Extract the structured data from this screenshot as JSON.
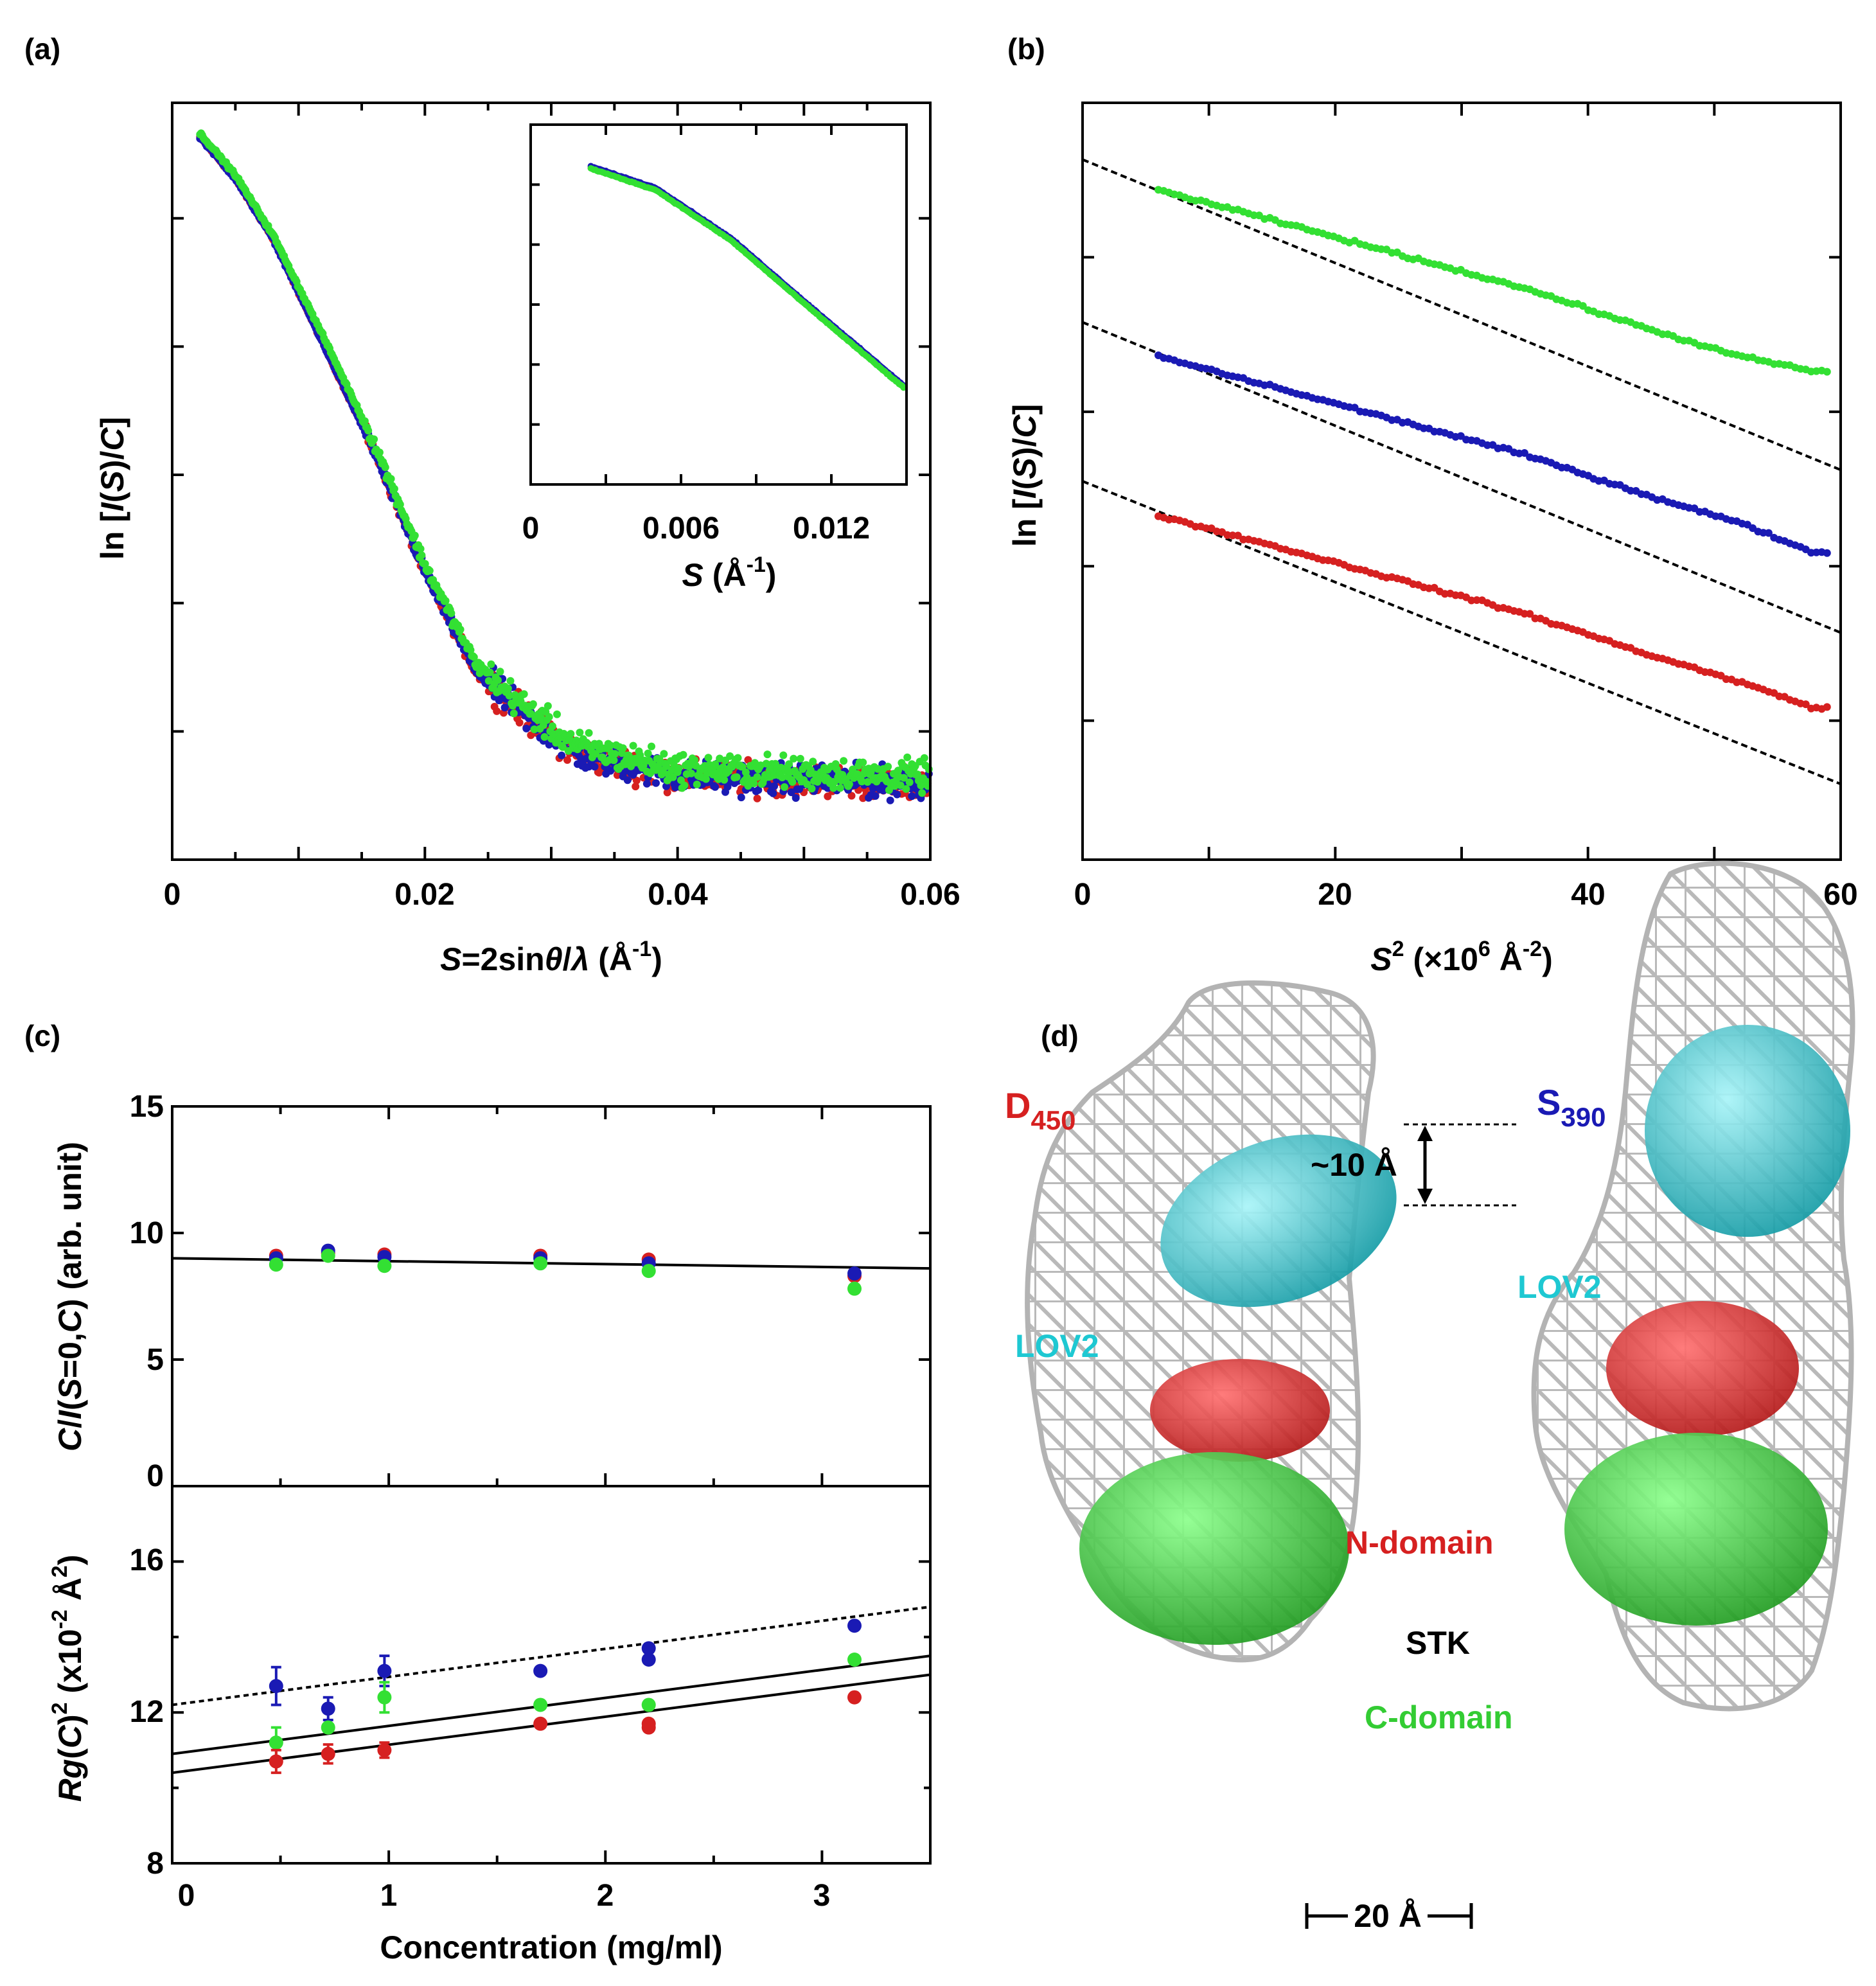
{
  "panels": {
    "a": "(a)",
    "b": "(b)",
    "c": "(c)",
    "d": "(d)"
  },
  "colors": {
    "red": "#d62020",
    "blue": "#1a1ab4",
    "green": "#33e033",
    "cyan": "#1ec8d2",
    "mesh": "#b8b8b8"
  },
  "chart_data": [
    {
      "id": "a",
      "type": "scatter",
      "title": "",
      "xlabel_parts": {
        "pre": "S",
        "mid": "=2sin",
        "theta": "θ",
        "slash": "/",
        "lambda": "λ",
        "unit": " (Å",
        "exp": "-1",
        "close": ")"
      },
      "ylabel_parts": {
        "pre": "ln [",
        "i": "I",
        "open": "(",
        "s": "S",
        "mid": ")/",
        "c": "C",
        "close": "]"
      },
      "xlim": [
        0,
        0.06
      ],
      "ylim": [
        0,
        1
      ],
      "xticks": [
        "0",
        "0.02",
        "0.04",
        "0.06"
      ],
      "series": [
        {
          "name": "red",
          "color": "#d62020",
          "profile": [
            [
              0.0022,
              0.955
            ],
            [
              0.005,
              0.9
            ],
            [
              0.008,
              0.82
            ],
            [
              0.012,
              0.68
            ],
            [
              0.016,
              0.54
            ],
            [
              0.02,
              0.38
            ],
            [
              0.024,
              0.25
            ],
            [
              0.028,
              0.19
            ],
            [
              0.032,
              0.14
            ],
            [
              0.04,
              0.11
            ],
            [
              0.06,
              0.1
            ]
          ]
        },
        {
          "name": "blue",
          "color": "#1a1ab4",
          "profile": [
            [
              0.0022,
              0.955
            ],
            [
              0.005,
              0.9
            ],
            [
              0.008,
              0.82
            ],
            [
              0.012,
              0.68
            ],
            [
              0.016,
              0.54
            ],
            [
              0.02,
              0.38
            ],
            [
              0.024,
              0.25
            ],
            [
              0.028,
              0.19
            ],
            [
              0.032,
              0.14
            ],
            [
              0.04,
              0.11
            ],
            [
              0.06,
              0.1
            ]
          ]
        },
        {
          "name": "green",
          "color": "#33e033",
          "profile": [
            [
              0.0022,
              0.96
            ],
            [
              0.005,
              0.905
            ],
            [
              0.008,
              0.825
            ],
            [
              0.012,
              0.69
            ],
            [
              0.016,
              0.55
            ],
            [
              0.02,
              0.39
            ],
            [
              0.024,
              0.26
            ],
            [
              0.028,
              0.2
            ],
            [
              0.032,
              0.15
            ],
            [
              0.04,
              0.12
            ],
            [
              0.06,
              0.11
            ]
          ]
        }
      ],
      "inset": {
        "xlim": [
          0,
          0.015
        ],
        "xticks": [
          "0",
          "0.006",
          "0.012"
        ],
        "xlabel_parts": {
          "s": "S",
          "unit": " (Å",
          "exp": "-1",
          "close": ")"
        },
        "profile": [
          [
            0.0024,
            0.88
          ],
          [
            0.005,
            0.82
          ],
          [
            0.008,
            0.68
          ],
          [
            0.011,
            0.5
          ],
          [
            0.0149,
            0.27
          ]
        ]
      }
    },
    {
      "id": "b",
      "type": "scatter",
      "title": "",
      "xlabel_parts": {
        "s": "S",
        "sq": "2",
        "unit": " (×10",
        "six": "6",
        "ang": " Å",
        "exp": "-2",
        "close": ")"
      },
      "ylabel_parts": {
        "pre": "ln [",
        "i": "I",
        "open": "(",
        "s": "S",
        "mid": ")/",
        "c": "C",
        "close": "]"
      },
      "xlim": [
        0,
        60
      ],
      "ylim": [
        0,
        1
      ],
      "xticks": [
        "0",
        "20",
        "40",
        "60"
      ],
      "series": [
        {
          "name": "green",
          "color": "#33e033",
          "fit": [
            0.925,
            0.515
          ],
          "points": [
            [
              6,
              0.885
            ],
            [
              15,
              0.845
            ],
            [
              25,
              0.8
            ],
            [
              35,
              0.755
            ],
            [
              45,
              0.7
            ],
            [
              52,
              0.665
            ],
            [
              58,
              0.645
            ]
          ]
        },
        {
          "name": "blue",
          "color": "#1a1ab4",
          "fit": [
            0.71,
            0.3
          ],
          "points": [
            [
              6,
              0.665
            ],
            [
              15,
              0.625
            ],
            [
              25,
              0.58
            ],
            [
              35,
              0.535
            ],
            [
              45,
              0.48
            ],
            [
              52,
              0.445
            ],
            [
              58,
              0.405
            ]
          ]
        },
        {
          "name": "red",
          "color": "#d62020",
          "fit": [
            0.5,
            0.1
          ],
          "points": [
            [
              6,
              0.455
            ],
            [
              15,
              0.415
            ],
            [
              25,
              0.37
            ],
            [
              35,
              0.325
            ],
            [
              45,
              0.27
            ],
            [
              52,
              0.235
            ],
            [
              58,
              0.2
            ]
          ]
        }
      ]
    },
    {
      "id": "c-top",
      "type": "scatter",
      "title": "",
      "ylabel_parts": {
        "c": "C",
        "slash": "/",
        "i": "I",
        "open": "(",
        "s": "S",
        "mid": "=0,",
        "c2": "C",
        "close": ") (arb. unit)"
      },
      "xlim": [
        0,
        3.5
      ],
      "ylim": [
        0,
        15
      ],
      "yticks": [
        "0",
        "5",
        "10",
        "15"
      ],
      "fit": {
        "y0": 9.0,
        "y1": 8.6
      },
      "series": [
        {
          "name": "red",
          "color": "#d62020",
          "x": [
            0.48,
            0.72,
            0.98,
            1.7,
            2.2,
            3.15
          ],
          "y": [
            9.1,
            9.2,
            9.15,
            9.1,
            8.95,
            8.3
          ]
        },
        {
          "name": "blue",
          "color": "#1a1ab4",
          "x": [
            0.48,
            0.72,
            0.98,
            1.7,
            2.2,
            3.15
          ],
          "y": [
            9.0,
            9.3,
            9.05,
            9.0,
            8.8,
            8.4
          ]
        },
        {
          "name": "green",
          "color": "#33e033",
          "x": [
            0.48,
            0.72,
            0.98,
            1.7,
            2.2,
            3.15
          ],
          "y": [
            8.75,
            9.1,
            8.7,
            8.8,
            8.5,
            7.8
          ]
        }
      ]
    },
    {
      "id": "c-bottom",
      "type": "scatter",
      "title": "",
      "xlabel": "Concentration (mg/ml)",
      "ylabel_parts": {
        "rg": "Rg",
        "open": "(",
        "c": "C",
        "close": ")",
        "sq": "2",
        "unit": " (x10",
        "exp": "-2",
        "ang": " Å",
        "sq2": "2",
        "end": ")"
      },
      "xlim": [
        0,
        3.5
      ],
      "ylim": [
        8,
        18
      ],
      "xticks": [
        "0",
        "1",
        "2",
        "3"
      ],
      "yticks": [
        "8",
        "12",
        "16"
      ],
      "fits": [
        {
          "style": "dotted",
          "y0": 12.2,
          "y1": 14.8
        },
        {
          "style": "solid",
          "y0": 10.9,
          "y1": 13.5
        },
        {
          "style": "solid",
          "y0": 10.4,
          "y1": 13.0
        }
      ],
      "series": [
        {
          "name": "blue",
          "color": "#1a1ab4",
          "x": [
            0.48,
            0.72,
            0.98,
            1.7,
            2.2,
            2.2,
            3.15
          ],
          "y": [
            12.7,
            12.1,
            13.1,
            13.1,
            13.4,
            13.7,
            14.3
          ],
          "err": [
            0.5,
            0.3,
            0.4,
            0,
            0,
            0,
            0
          ]
        },
        {
          "name": "green",
          "color": "#33e033",
          "x": [
            0.48,
            0.72,
            0.98,
            1.7,
            2.2,
            3.15
          ],
          "y": [
            11.2,
            11.6,
            12.4,
            12.2,
            12.2,
            13.4
          ],
          "err": [
            0.4,
            0,
            0.4,
            0,
            0,
            0
          ]
        },
        {
          "name": "red",
          "color": "#d62020",
          "x": [
            0.48,
            0.72,
            0.98,
            1.7,
            2.2,
            2.2,
            3.15
          ],
          "y": [
            10.7,
            10.9,
            11.0,
            11.7,
            11.6,
            11.7,
            12.4
          ],
          "err": [
            0.3,
            0.25,
            0.2,
            0,
            0,
            0,
            0
          ]
        }
      ]
    }
  ],
  "model": {
    "d450": {
      "base": "D",
      "sub": "450"
    },
    "s390": {
      "base": "S",
      "sub": "390"
    },
    "ten": "~10 Å",
    "lov2": "LOV2",
    "ndomain": "N-domain",
    "stk": "STK",
    "cdomain": "C-domain",
    "scale": "20 Å"
  }
}
